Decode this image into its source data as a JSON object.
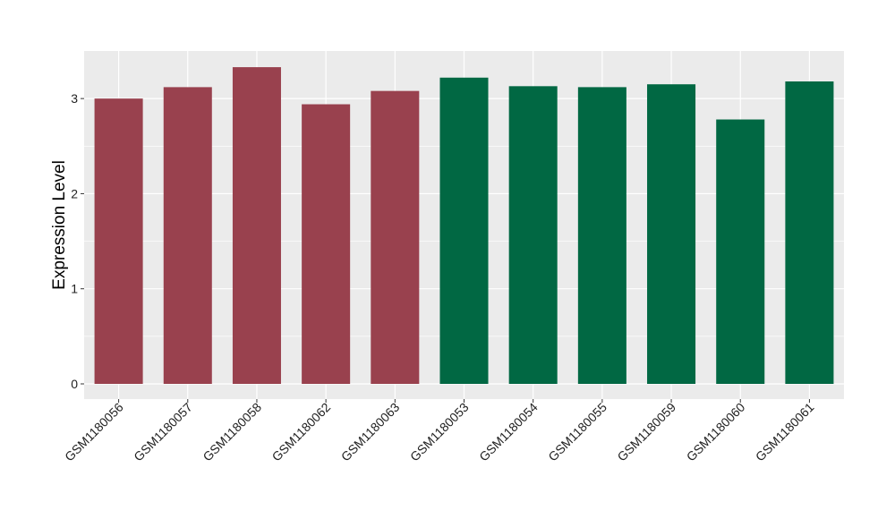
{
  "chart_data": {
    "type": "bar",
    "title": "",
    "xlabel": "",
    "ylabel": "Expression Level",
    "ylim": [
      -0.16,
      3.5
    ],
    "yticks": [
      0,
      1,
      2,
      3
    ],
    "grid": true,
    "legend": "none",
    "categories": [
      "GSM1180056",
      "GSM1180057",
      "GSM1180058",
      "GSM1180062",
      "GSM1180063",
      "GSM1180053",
      "GSM1180054",
      "GSM1180055",
      "GSM1180059",
      "GSM1180060",
      "GSM1180061"
    ],
    "values": [
      3.0,
      3.12,
      3.33,
      2.94,
      3.08,
      3.22,
      3.13,
      3.12,
      3.15,
      2.78,
      3.18
    ],
    "groups": [
      0,
      0,
      0,
      0,
      0,
      1,
      1,
      1,
      1,
      1,
      1
    ],
    "colors": [
      "#99414E",
      "#016843"
    ],
    "panel_background": "#EBEBEB",
    "grid_color": "#FFFFFF"
  }
}
